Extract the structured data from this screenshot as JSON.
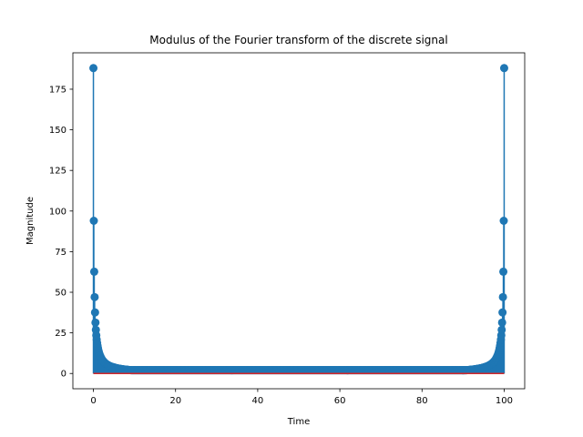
{
  "chart_data": {
    "type": "scatter",
    "title": "Modulus of the Fourier transform of the discrete signal",
    "xlabel": "Time",
    "ylabel": "Magnitude",
    "xlim": [
      -5,
      105
    ],
    "ylim": [
      -9.4,
      197.4
    ],
    "xticks": [
      0,
      20,
      40,
      60,
      80,
      100
    ],
    "yticks": [
      0,
      25,
      50,
      75,
      100,
      125,
      150,
      175
    ],
    "grid": false,
    "legend": "none",
    "series": [
      {
        "kind": "stem-markers",
        "color": "#1f77b4",
        "x_range": [
          0,
          100
        ],
        "num_points": 1001,
        "peak_value": 188,
        "floor_value": 2.0,
        "note_shape": "magnitude ~ peak/(index from nearest end), symmetric about x=50"
      }
    ],
    "baseline": {
      "value": 0,
      "color": "#d62728"
    },
    "stem_color": "#1f77b4"
  }
}
